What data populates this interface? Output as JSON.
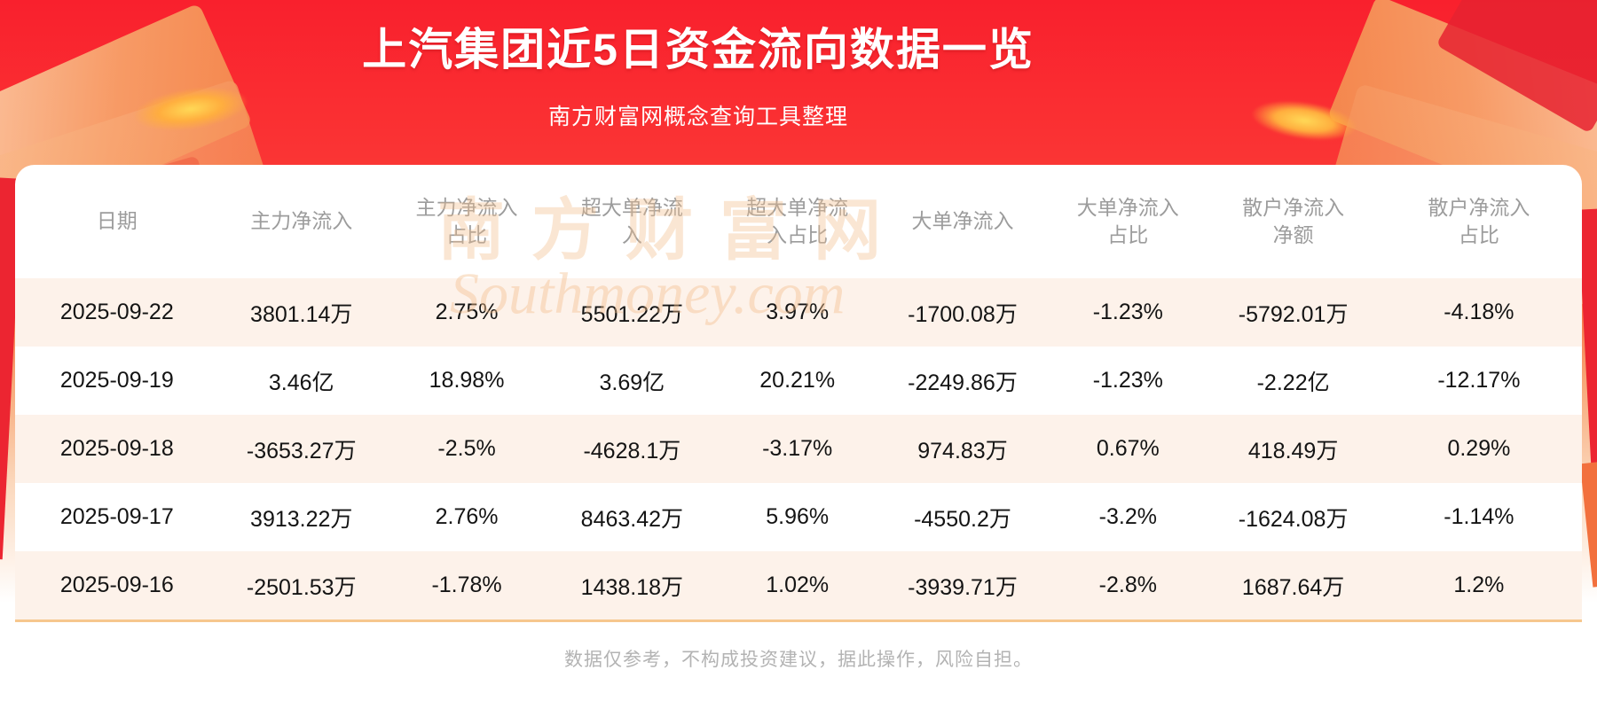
{
  "header": {
    "title": "上汽集团近5日资金流向数据一览",
    "subtitle": "南方财富网概念查询工具整理"
  },
  "chart_data": {
    "type": "table",
    "title": "上汽集团近5日资金流向数据一览",
    "columns": [
      "日期",
      "主力净流入",
      "主力净流入占比",
      "超大单净流入",
      "超大单净流入占比",
      "大单净流入",
      "大单净流入占比",
      "散户净流入净额",
      "散户净流入占比"
    ],
    "rows": [
      [
        "2025-09-22",
        "3801.14万",
        "2.75%",
        "5501.22万",
        "3.97%",
        "-1700.08万",
        "-1.23%",
        "-5792.01万",
        "-4.18%"
      ],
      [
        "2025-09-19",
        "3.46亿",
        "18.98%",
        "3.69亿",
        "20.21%",
        "-2249.86万",
        "-1.23%",
        "-2.22亿",
        "-12.17%"
      ],
      [
        "2025-09-18",
        "-3653.27万",
        "-2.5%",
        "-4628.1万",
        "-3.17%",
        "974.83万",
        "0.67%",
        "418.49万",
        "0.29%"
      ],
      [
        "2025-09-17",
        "3913.22万",
        "2.76%",
        "8463.42万",
        "5.96%",
        "-4550.2万",
        "-3.2%",
        "-1624.08万",
        "-1.14%"
      ],
      [
        "2025-09-16",
        "-2501.53万",
        "-1.78%",
        "1438.18万",
        "1.02%",
        "-3939.71万",
        "-2.8%",
        "1687.64万",
        "1.2%"
      ]
    ],
    "layout": {
      "striped_rows": true,
      "stripe_color": "#fdf2ea",
      "bottom_rule_color": "#f6c78e"
    }
  },
  "watermark": {
    "cn": "南方财富网",
    "en": "Southmoney.com"
  },
  "footer": {
    "disclaimer": "数据仅参考，不构成投资建议，据此操作，风险自担。"
  },
  "colors": {
    "banner_red_top": "#f9202d",
    "banner_orange_mid": "#f7a878",
    "card_bg": "#ffffff",
    "stripe_row": "#fdf2ea",
    "divider_orange": "#f6c78e",
    "column_header_text": "#9c9c9c",
    "cell_text": "#141414",
    "disclaimer_text": "#b3b3b3",
    "title_text": "#ffffff"
  }
}
